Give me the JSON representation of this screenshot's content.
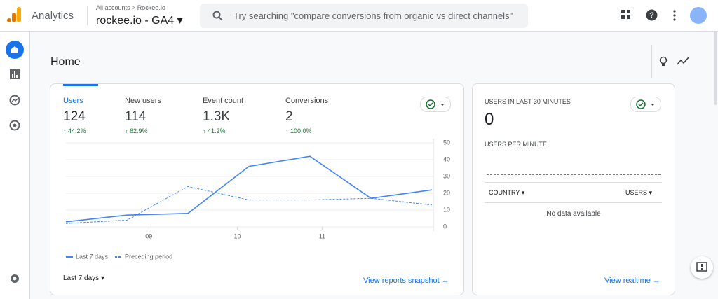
{
  "header": {
    "product": "Analytics",
    "breadcrumb": [
      "All accounts",
      "Rockee.io"
    ],
    "property": "rockee.io - GA4",
    "search_placeholder": "Try searching \"compare conversions from organic vs direct channels\""
  },
  "page_title": "Home",
  "metrics": [
    {
      "label": "Users",
      "value": 124,
      "change": "44.2%"
    },
    {
      "label": "New users",
      "value": 114,
      "change": "62.9%"
    },
    {
      "label": "Event count",
      "value": "1.3K",
      "change": "41.2%"
    },
    {
      "label": "Conversions",
      "value": 2,
      "change": "100.0%"
    }
  ],
  "chart_data": {
    "type": "line",
    "x": [
      0,
      1,
      2,
      3,
      4,
      5,
      6
    ],
    "xlim": [
      0,
      6
    ],
    "xticks": [
      {
        "value": 1.36,
        "label": "09"
      },
      {
        "value": 2.81,
        "label": "10"
      },
      {
        "value": 4.2,
        "label": "11"
      }
    ],
    "ylim": [
      0,
      50
    ],
    "yticks": [
      0,
      10,
      20,
      30,
      40,
      50
    ],
    "grid": true,
    "series": [
      {
        "name": "Last 7 days",
        "color": "#4285f4",
        "style": "solid",
        "values": [
          3,
          7,
          8,
          36,
          42,
          17,
          22
        ]
      },
      {
        "name": "Preceding period",
        "color": "#4285f4",
        "style": "dashed",
        "values": [
          2,
          4,
          24,
          16,
          16,
          17,
          13
        ]
      }
    ]
  },
  "footer": {
    "range": "Last 7 days",
    "link": "View reports snapshot"
  },
  "realtime": {
    "title": "USERS IN LAST 30 MINUTES",
    "value": 0,
    "subtitle": "USERS PER MINUTE",
    "columns": [
      "COUNTRY",
      "USERS"
    ],
    "empty": "No data available",
    "link": "View realtime"
  }
}
